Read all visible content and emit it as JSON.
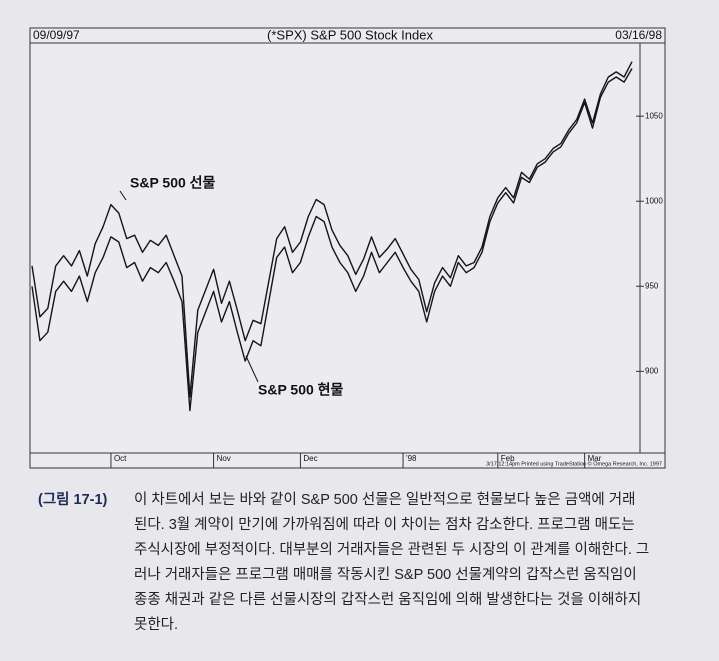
{
  "chart_data": {
    "type": "line",
    "header_left": "09/09/97",
    "title": "(*SPX) S&P 500 Stock Index",
    "header_right": "03/16/98",
    "categories": [
      null,
      null,
      null,
      null,
      null,
      null,
      null,
      null,
      null,
      null,
      "Oct",
      null,
      null,
      null,
      null,
      null,
      null,
      null,
      null,
      null,
      null,
      null,
      null,
      "Nov",
      null,
      null,
      null,
      null,
      null,
      null,
      null,
      null,
      null,
      null,
      "Dec",
      null,
      null,
      null,
      null,
      null,
      null,
      null,
      null,
      null,
      null,
      null,
      null,
      "'98",
      null,
      null,
      null,
      null,
      null,
      null,
      null,
      null,
      null,
      null,
      null,
      "Feb",
      null,
      null,
      null,
      null,
      null,
      null,
      null,
      null,
      null,
      null,
      "Mar",
      null,
      null,
      null,
      null,
      null,
      null
    ],
    "series": [
      {
        "name": "S&P 500 선물",
        "color": "#151515",
        "values": [
          962,
          932,
          937,
          962,
          968,
          962,
          971,
          956,
          975,
          985,
          998,
          993,
          978,
          980,
          970,
          977,
          974,
          980,
          968,
          956,
          885,
          936,
          948,
          960,
          940,
          953,
          936,
          918,
          930,
          928,
          953,
          978,
          985,
          970,
          976,
          991,
          1001,
          998,
          983,
          974,
          968,
          957,
          966,
          979,
          967,
          972,
          978,
          969,
          960,
          954,
          935,
          952,
          961,
          955,
          968,
          962,
          964,
          973,
          991,
          1002,
          1008,
          1002,
          1017,
          1013,
          1022,
          1025,
          1031,
          1034,
          1042,
          1048,
          1060,
          1046,
          1063,
          1073,
          1076,
          1073,
          1082
        ]
      },
      {
        "name": "S&P 500 현물",
        "color": "#151515",
        "values": [
          950,
          918,
          923,
          947,
          953,
          947,
          956,
          941,
          958,
          967,
          979,
          976,
          961,
          964,
          953,
          961,
          958,
          964,
          953,
          941,
          877,
          923,
          935,
          947,
          929,
          941,
          923,
          906,
          918,
          915,
          941,
          967,
          973,
          958,
          964,
          979,
          991,
          988,
          973,
          964,
          958,
          947,
          956,
          970,
          958,
          964,
          970,
          961,
          953,
          947,
          929,
          947,
          956,
          950,
          964,
          958,
          961,
          970,
          988,
          999,
          1005,
          999,
          1014,
          1011,
          1020,
          1023,
          1029,
          1032,
          1040,
          1046,
          1058,
          1043,
          1061,
          1070,
          1073,
          1070,
          1078
        ]
      }
    ],
    "ylim": [
      852,
      1093
    ],
    "yticks": [
      900,
      950,
      1000,
      1050
    ],
    "footnote": "3/17 12:14pm Printed using TradeStation © Omega Research, Inc. 1997"
  },
  "caption": {
    "label": "(그림 17-1)",
    "lines": [
      "이 차트에서 보는 바와 같이 S&P 500 선물은 일반적으로 현물보다 높은 금액에 거래",
      "된다. 3월 계약이 만기에 가까워짐에 따라 이 차이는 점차 감소한다. 프로그램 매도는",
      "주식시장에 부정적이다. 대부분의 거래자들은 관련된 두 시장의 이 관계를 이해한다. 그",
      "러나 거래자들은 프로그램 매매를 작동시킨 S&P 500 선물계약의 갑작스런 움직임이",
      "종종 채권과 같은 다른 선물시장의 갑작스런 움직임에 의해 발생한다는 것을 이해하지",
      "못한다."
    ]
  }
}
